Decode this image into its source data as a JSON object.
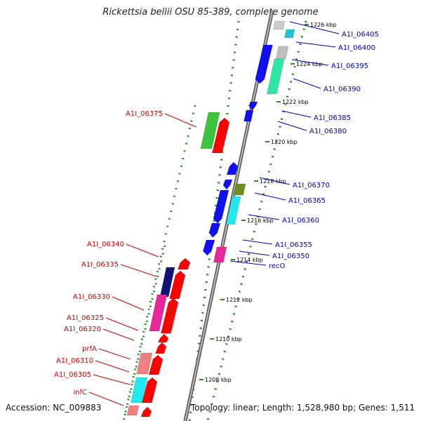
{
  "title": "Rickettsia bellii OSU 85-389, complete genome",
  "accession_text": "Accession: NC_009883",
  "summary_text": "Topology: linear; Length: 1,528,980 bp; Genes: 1,511",
  "colors": {
    "plus_strand_label": "#0000bb",
    "minus_strand_label": "#cc0000",
    "axis_dots": "#2e8b2e",
    "backbone": "#888888"
  },
  "tick_labels": [
    "1226 kbp",
    "1224 kbp",
    "1222 kbp",
    "1220 kbp",
    "1218 kbp",
    "1216 kbp",
    "1214 kbp",
    "1212 kbp",
    "1210 kbp",
    "1208 kbp"
  ],
  "plus_genes": [
    "A1I_06405",
    "A1I_06400",
    "A1I_06395",
    "A1I_06390",
    "A1I_06385",
    "A1I_06380",
    "A1I_06370",
    "A1I_06365",
    "A1I_06360",
    "A1I_06355",
    "A1I_06350",
    "recO"
  ],
  "minus_genes": [
    "A1I_06375",
    "A1I_06340",
    "A1I_06335",
    "A1I_06330",
    "A1I_06325",
    "A1I_06320",
    "prfA",
    "A1I_06310",
    "A1I_06305",
    "infC"
  ]
}
